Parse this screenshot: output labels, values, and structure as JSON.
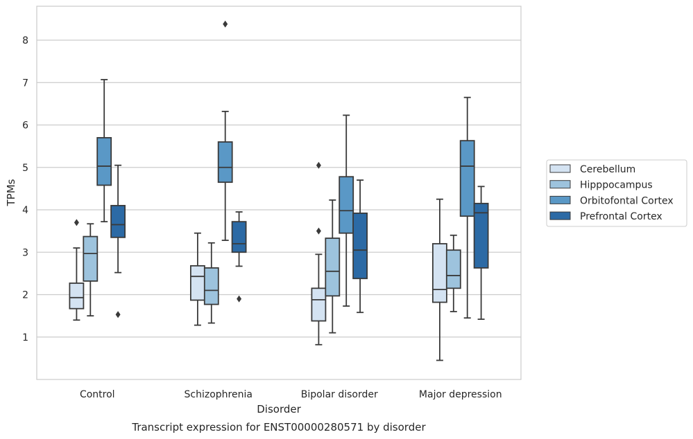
{
  "chart_data": {
    "type": "box",
    "title": "Transcript expression for ENST00000280571 by disorder",
    "xlabel": "Disorder",
    "ylabel": "TPMs",
    "ylim": [
      0.0,
      8.8
    ],
    "yticks": [
      1,
      2,
      3,
      4,
      5,
      6,
      7,
      8
    ],
    "grid": "horizontal",
    "legend_position": "right",
    "categories": [
      "Control",
      "Schizophrenia",
      "Bipolar disorder",
      "Major depression"
    ],
    "series": [
      {
        "name": "Cerebellum",
        "color": "#d4e3f2",
        "boxes": [
          {
            "whislo": 1.4,
            "q1": 1.67,
            "med": 1.93,
            "q3": 2.27,
            "whishi": 3.1,
            "fliers": [
              3.7
            ]
          },
          {
            "whislo": 1.28,
            "q1": 1.87,
            "med": 2.43,
            "q3": 2.68,
            "whishi": 3.45,
            "fliers": []
          },
          {
            "whislo": 0.82,
            "q1": 1.38,
            "med": 1.88,
            "q3": 2.15,
            "whishi": 2.95,
            "fliers": [
              3.5,
              5.05
            ]
          },
          {
            "whislo": 0.45,
            "q1": 1.82,
            "med": 2.12,
            "q3": 3.2,
            "whishi": 4.25,
            "fliers": []
          }
        ]
      },
      {
        "name": "Hipppocampus",
        "color": "#9dc3dd",
        "boxes": [
          {
            "whislo": 1.5,
            "q1": 2.32,
            "med": 2.97,
            "q3": 3.37,
            "whishi": 3.67,
            "fliers": []
          },
          {
            "whislo": 1.33,
            "q1": 1.77,
            "med": 2.1,
            "q3": 2.63,
            "whishi": 3.22,
            "fliers": []
          },
          {
            "whislo": 1.1,
            "q1": 1.97,
            "med": 2.55,
            "q3": 3.33,
            "whishi": 4.23,
            "fliers": []
          },
          {
            "whislo": 1.6,
            "q1": 2.15,
            "med": 2.45,
            "q3": 3.05,
            "whishi": 3.4,
            "fliers": []
          }
        ]
      },
      {
        "name": "Orbitofontal Cortex",
        "color": "#5a98c6",
        "boxes": [
          {
            "whislo": 3.72,
            "q1": 4.58,
            "med": 5.03,
            "q3": 5.7,
            "whishi": 7.07,
            "fliers": []
          },
          {
            "whislo": 3.28,
            "q1": 4.65,
            "med": 5.0,
            "q3": 5.6,
            "whishi": 6.32,
            "fliers": [
              8.38
            ]
          },
          {
            "whislo": 1.73,
            "q1": 3.45,
            "med": 3.98,
            "q3": 4.78,
            "whishi": 6.23,
            "fliers": []
          },
          {
            "whislo": 1.45,
            "q1": 3.85,
            "med": 5.03,
            "q3": 5.63,
            "whishi": 6.65,
            "fliers": []
          }
        ]
      },
      {
        "name": "Prefrontal Cortex",
        "color": "#2c6aa5",
        "boxes": [
          {
            "whislo": 2.52,
            "q1": 3.35,
            "med": 3.65,
            "q3": 4.1,
            "whishi": 5.05,
            "fliers": [
              1.53
            ]
          },
          {
            "whislo": 2.67,
            "q1": 3.0,
            "med": 3.2,
            "q3": 3.72,
            "whishi": 3.95,
            "fliers": [
              1.9
            ]
          },
          {
            "whislo": 1.58,
            "q1": 2.38,
            "med": 3.05,
            "q3": 3.92,
            "whishi": 4.7,
            "fliers": []
          },
          {
            "whislo": 1.42,
            "q1": 2.63,
            "med": 3.93,
            "q3": 4.15,
            "whishi": 4.55,
            "fliers": []
          }
        ]
      }
    ]
  }
}
